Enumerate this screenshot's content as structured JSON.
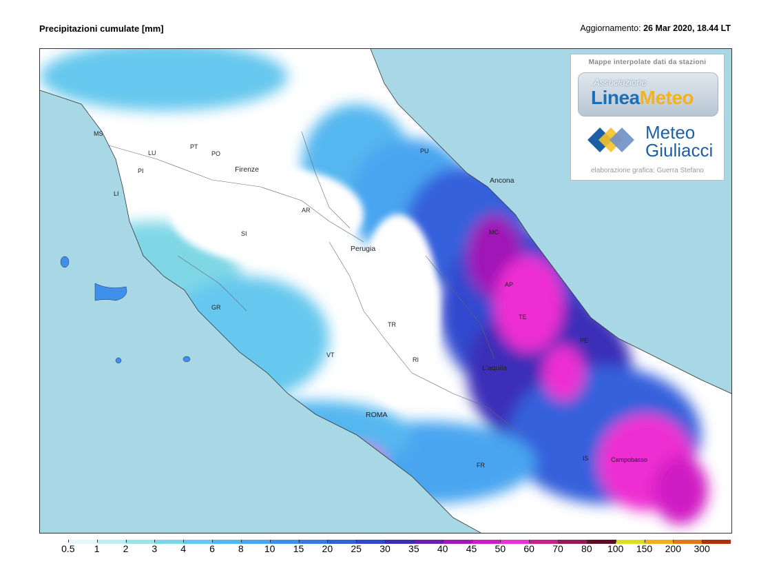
{
  "header": {
    "title": "Precipitazioni cumulate [mm]",
    "update_label": "Aggiornamento:",
    "update_value": "26 Mar 2020, 18.44 LT"
  },
  "logo_box": {
    "header": "Mappe interpolate dati da stazioni",
    "assoc_label": "Associazione",
    "linea_meteo_a": "Linea",
    "linea_meteo_b": "Meteo",
    "giuliacci_line1": "Meteo",
    "giuliacci_line2": "Giuliacci",
    "footer": "elaborazione grafica: Guerra Stefano"
  },
  "places": [
    {
      "name": "MS"
    },
    {
      "name": "LU"
    },
    {
      "name": "PT"
    },
    {
      "name": "PO"
    },
    {
      "name": "PI"
    },
    {
      "name": "Firenze"
    },
    {
      "name": "LI"
    },
    {
      "name": "AR"
    },
    {
      "name": "SI"
    },
    {
      "name": "Perugia"
    },
    {
      "name": "PU"
    },
    {
      "name": "Ancona"
    },
    {
      "name": "MC"
    },
    {
      "name": "AP"
    },
    {
      "name": "TE"
    },
    {
      "name": "GR"
    },
    {
      "name": "TR"
    },
    {
      "name": "VT"
    },
    {
      "name": "RI"
    },
    {
      "name": "L'aquila"
    },
    {
      "name": "PE"
    },
    {
      "name": "ROMA"
    },
    {
      "name": "FR"
    },
    {
      "name": "IS"
    },
    {
      "name": "Campobasso"
    }
  ],
  "legend": {
    "values": [
      "0.5",
      "1",
      "2",
      "3",
      "4",
      "6",
      "8",
      "10",
      "15",
      "20",
      "25",
      "30",
      "35",
      "40",
      "45",
      "50",
      "60",
      "70",
      "80",
      "100",
      "150",
      "200",
      "300"
    ],
    "colors": [
      "#ffffff",
      "#e8f7fb",
      "#bfeef2",
      "#9fe3e8",
      "#7fd7e6",
      "#66c8ee",
      "#55b7ef",
      "#4aa5f0",
      "#3f90ec",
      "#3a78e6",
      "#3560dc",
      "#3048cf",
      "#3a2fb8",
      "#6a1fb0",
      "#a018b6",
      "#d01cc4",
      "#ee2fd2",
      "#c8228a",
      "#98185a",
      "#5a1024",
      "#d8e020",
      "#f0b018",
      "#e07818",
      "#b03010"
    ]
  },
  "colors": {
    "sea": "#a8d7e6",
    "land_dry": "#ffffff",
    "rain_light": "#7fd7e6",
    "rain_mid": "#3a78e6",
    "rain_heavy": "#3048cf",
    "rain_extreme": "#ee2fd2"
  }
}
